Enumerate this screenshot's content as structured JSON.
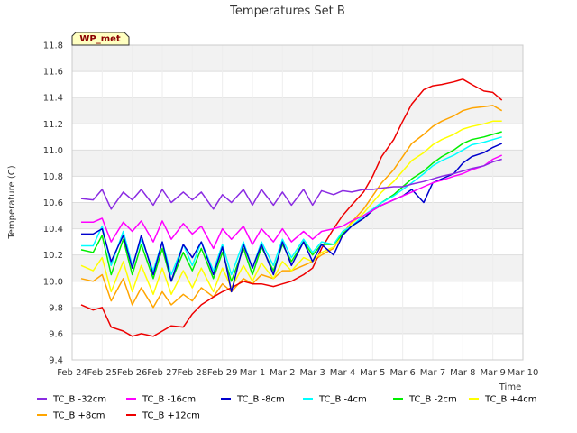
{
  "chart_data": {
    "type": "line",
    "title": "Temperatures Set B",
    "xlabel": "Time",
    "ylabel": "Temperature (C)",
    "badge": "WP_met",
    "ylim": [
      9.4,
      11.8
    ],
    "yticks": [
      "9.4",
      "9.6",
      "9.8",
      "10.0",
      "10.2",
      "10.4",
      "10.6",
      "10.8",
      "11.0",
      "11.2",
      "11.4",
      "11.6",
      "11.8"
    ],
    "xlim": [
      0,
      15
    ],
    "xticks": [
      "Feb 24",
      "Feb 25",
      "Feb 26",
      "Feb 27",
      "Feb 28",
      "Feb 29",
      "Mar 1",
      "Mar 2",
      "Mar 3",
      "Mar 4",
      "Mar 5",
      "Mar 6",
      "Mar 7",
      "Mar 8",
      "Mar 9",
      "Mar 10"
    ],
    "grid": true,
    "legend_position": "bottom",
    "x": [
      0.3,
      0.7,
      1.0,
      1.3,
      1.7,
      2.0,
      2.3,
      2.7,
      3.0,
      3.3,
      3.7,
      4.0,
      4.3,
      4.7,
      5.0,
      5.3,
      5.7,
      6.0,
      6.3,
      6.7,
      7.0,
      7.3,
      7.7,
      8.0,
      8.3,
      8.7,
      9.0,
      9.3,
      9.7,
      10.0,
      10.3,
      10.7,
      11.0,
      11.3,
      11.7,
      12.0,
      12.3,
      12.7,
      13.0,
      13.3,
      13.7,
      14.0,
      14.3
    ],
    "series": [
      {
        "name": "TC_B -32cm",
        "color": "#8a2be2",
        "values": [
          10.63,
          10.62,
          10.7,
          10.55,
          10.68,
          10.62,
          10.7,
          10.58,
          10.7,
          10.6,
          10.68,
          10.62,
          10.68,
          10.55,
          10.66,
          10.6,
          10.7,
          10.58,
          10.7,
          10.58,
          10.68,
          10.58,
          10.7,
          10.58,
          10.69,
          10.66,
          10.69,
          10.68,
          10.7,
          10.7,
          10.71,
          10.72,
          10.72,
          10.74,
          10.76,
          10.78,
          10.8,
          10.82,
          10.84,
          10.86,
          10.88,
          10.91,
          10.93
        ]
      },
      {
        "name": "TC_B -16cm",
        "color": "#ff00ff",
        "values": [
          10.45,
          10.45,
          10.48,
          10.3,
          10.45,
          10.38,
          10.46,
          10.3,
          10.46,
          10.32,
          10.44,
          10.36,
          10.42,
          10.25,
          10.4,
          10.32,
          10.42,
          10.28,
          10.4,
          10.3,
          10.4,
          10.3,
          10.38,
          10.32,
          10.38,
          10.4,
          10.42,
          10.46,
          10.5,
          10.54,
          10.58,
          10.62,
          10.65,
          10.68,
          10.72,
          10.75,
          10.77,
          10.8,
          10.82,
          10.85,
          10.88,
          10.93,
          10.96
        ]
      },
      {
        "name": "TC_B -8cm",
        "color": "#0000cd",
        "values": [
          10.36,
          10.36,
          10.4,
          10.15,
          10.35,
          10.1,
          10.35,
          10.05,
          10.3,
          10.0,
          10.28,
          10.18,
          10.3,
          10.05,
          10.26,
          9.92,
          10.28,
          10.1,
          10.28,
          10.05,
          10.3,
          10.12,
          10.3,
          10.15,
          10.28,
          10.2,
          10.35,
          10.42,
          10.48,
          10.54,
          10.58,
          10.62,
          10.65,
          10.7,
          10.6,
          10.75,
          10.78,
          10.82,
          10.9,
          10.95,
          10.98,
          11.02,
          11.05
        ]
      },
      {
        "name": "TC_B -4cm",
        "color": "#00ffff",
        "values": [
          10.27,
          10.27,
          10.42,
          10.12,
          10.38,
          10.12,
          10.32,
          10.08,
          10.3,
          10.05,
          10.28,
          10.12,
          10.3,
          10.08,
          10.28,
          10.05,
          10.3,
          10.1,
          10.3,
          10.12,
          10.32,
          10.18,
          10.32,
          10.22,
          10.3,
          10.28,
          10.38,
          10.42,
          10.5,
          10.55,
          10.6,
          10.65,
          10.7,
          10.75,
          10.82,
          10.88,
          10.92,
          10.96,
          11.0,
          11.04,
          11.06,
          11.08,
          11.1
        ]
      },
      {
        "name": "TC_B -2cm",
        "color": "#00ee00",
        "values": [
          10.24,
          10.22,
          10.35,
          10.05,
          10.32,
          10.05,
          10.28,
          10.02,
          10.25,
          10.0,
          10.22,
          10.08,
          10.25,
          10.02,
          10.22,
          10.0,
          10.25,
          10.05,
          10.26,
          10.08,
          10.28,
          10.15,
          10.3,
          10.2,
          10.28,
          10.28,
          10.36,
          10.42,
          10.48,
          10.54,
          10.6,
          10.66,
          10.72,
          10.78,
          10.84,
          10.9,
          10.95,
          11.0,
          11.05,
          11.08,
          11.1,
          11.12,
          11.14
        ]
      },
      {
        "name": "TC_B +4cm",
        "color": "#ffff00",
        "values": [
          10.12,
          10.08,
          10.18,
          9.92,
          10.15,
          9.92,
          10.12,
          9.9,
          10.1,
          9.9,
          10.08,
          9.95,
          10.1,
          9.92,
          10.1,
          9.95,
          10.12,
          10.0,
          10.14,
          10.02,
          10.15,
          10.08,
          10.18,
          10.15,
          10.22,
          10.26,
          10.36,
          10.44,
          10.52,
          10.6,
          10.68,
          10.76,
          10.84,
          10.92,
          10.98,
          11.04,
          11.08,
          11.12,
          11.16,
          11.18,
          11.2,
          11.22,
          11.22
        ]
      },
      {
        "name": "TC_B +8cm",
        "color": "#ffa500",
        "values": [
          10.02,
          10.0,
          10.05,
          9.85,
          10.02,
          9.82,
          9.95,
          9.8,
          9.92,
          9.82,
          9.9,
          9.85,
          9.95,
          9.88,
          9.98,
          9.92,
          10.02,
          9.98,
          10.05,
          10.02,
          10.08,
          10.08,
          10.12,
          10.15,
          10.2,
          10.25,
          10.36,
          10.45,
          10.55,
          10.65,
          10.75,
          10.85,
          10.95,
          11.05,
          11.12,
          11.18,
          11.22,
          11.26,
          11.3,
          11.32,
          11.33,
          11.34,
          11.3
        ]
      },
      {
        "name": "TC_B +12cm",
        "color": "#ee0000",
        "values": [
          9.82,
          9.78,
          9.8,
          9.65,
          9.62,
          9.58,
          9.6,
          9.58,
          9.62,
          9.66,
          9.65,
          9.75,
          9.82,
          9.88,
          9.92,
          9.95,
          10.0,
          9.98,
          9.98,
          9.96,
          9.98,
          10.0,
          10.05,
          10.1,
          10.25,
          10.4,
          10.5,
          10.58,
          10.68,
          10.8,
          10.95,
          11.08,
          11.22,
          11.35,
          11.46,
          11.49,
          11.5,
          11.52,
          11.54,
          11.5,
          11.45,
          11.44,
          11.38
        ]
      }
    ]
  }
}
